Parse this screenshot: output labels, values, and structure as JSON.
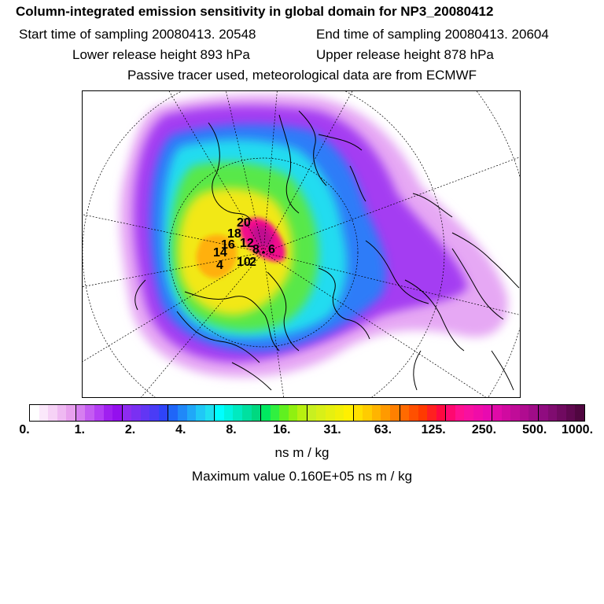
{
  "header": {
    "title": "Column-integrated emission sensitivity in global domain for NP3_20080412",
    "start_time_label": "Start time of sampling 20080413. 20548",
    "end_time_label": "End time of sampling 20080413. 20604",
    "lower_release_label": "Lower release height  893 hPa",
    "upper_release_label": "Upper release height  878 hPa",
    "tracer_note": "Passive tracer used, meteorological data are from ECMWF"
  },
  "map": {
    "projection": "north-polar-stereographic",
    "plume_labels": [
      "20",
      "18",
      "16",
      "14",
      "12",
      "10",
      "8",
      "6",
      "4",
      "2"
    ]
  },
  "colorbar": {
    "tick_labels": [
      "0.",
      "1.",
      "2.",
      "4.",
      "8.",
      "16.",
      "31.",
      "63.",
      "125.",
      "250.",
      "500.",
      "1000."
    ],
    "colors": [
      "#ffffff",
      "#fbe8fb",
      "#f6d2f6",
      "#efb9f2",
      "#e8a0ee",
      "#d67ef0",
      "#c45cf2",
      "#b43ef4",
      "#a020f0",
      "#9410ee",
      "#8e2cf0",
      "#7a30f2",
      "#6236f4",
      "#4a3cf6",
      "#2f44f8",
      "#1f66f8",
      "#2088f8",
      "#20a8f8",
      "#20c8f6",
      "#20e0f0",
      "#00ffff",
      "#00f4e0",
      "#00eac0",
      "#00e0a0",
      "#00d880",
      "#00e860",
      "#30f040",
      "#60f020",
      "#90f010",
      "#b8f010",
      "#c8f020",
      "#d8f018",
      "#e6f010",
      "#f2f008",
      "#fff000",
      "#ffe000",
      "#ffcc00",
      "#ffb400",
      "#ff9a00",
      "#ff8000",
      "#ff6a00",
      "#ff5000",
      "#ff3a00",
      "#ff2020",
      "#ff0840",
      "#ff0870",
      "#ff1090",
      "#f810a0",
      "#f00ca8",
      "#e80ab0",
      "#e00aa8",
      "#d00aa0",
      "#c00c98",
      "#b00c90",
      "#a00c88",
      "#900c80",
      "#800c70",
      "#700a60",
      "#600850",
      "#500640"
    ],
    "units": "ns m / kg"
  },
  "max_value_label": "Maximum value  0.160E+05 ns m / kg"
}
